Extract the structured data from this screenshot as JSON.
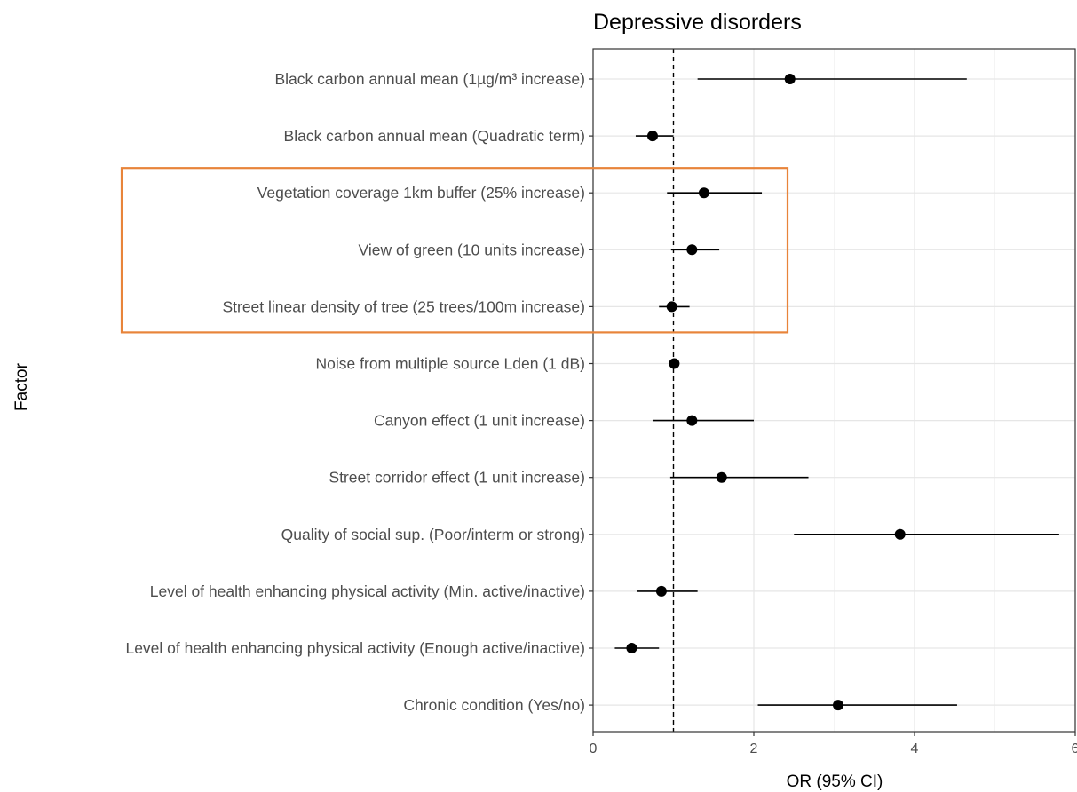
{
  "chart_data": {
    "type": "scatter",
    "title": "Depressive disorders",
    "xlabel": "OR (95% CI)",
    "ylabel": "Factor",
    "xlim": [
      0,
      6
    ],
    "x_ticks": [
      0,
      2,
      4,
      6
    ],
    "reference_line": 1,
    "grid": true,
    "highlight_box": {
      "color": "#e8843a",
      "factors": [
        "Vegetation coverage 1km buffer (25% increase)",
        "View of green (10 units increase)",
        "Street linear density of tree (25 trees/100m increase)"
      ]
    },
    "factors": [
      {
        "label": "Black carbon annual mean (1µg/m³ increase)",
        "or": 2.45,
        "lower": 1.3,
        "upper": 4.65
      },
      {
        "label": "Black carbon annual mean (Quadratic term)",
        "or": 0.74,
        "lower": 0.53,
        "upper": 1.0
      },
      {
        "label": "Vegetation coverage 1km buffer (25% increase)",
        "or": 1.38,
        "lower": 0.92,
        "upper": 2.1
      },
      {
        "label": "View of green (10 units increase)",
        "or": 1.23,
        "lower": 0.97,
        "upper": 1.57
      },
      {
        "label": "Street linear density of tree (25 trees/100m increase)",
        "or": 0.98,
        "lower": 0.82,
        "upper": 1.2
      },
      {
        "label": "Noise from multiple source Lden (1 dB)",
        "or": 1.01,
        "lower": 0.98,
        "upper": 1.04
      },
      {
        "label": "Canyon effect (1 unit increase)",
        "or": 1.23,
        "lower": 0.74,
        "upper": 2.0
      },
      {
        "label": "Street corridor effect (1 unit increase)",
        "or": 1.6,
        "lower": 0.96,
        "upper": 2.68
      },
      {
        "label": "Quality of social sup. (Poor/interm or strong)",
        "or": 3.82,
        "lower": 2.5,
        "upper": 5.8
      },
      {
        "label": "Level of health enhancing physical activity (Min. active/inactive)",
        "or": 0.85,
        "lower": 0.55,
        "upper": 1.3
      },
      {
        "label": "Level of health enhancing physical activity (Enough active/inactive)",
        "or": 0.48,
        "lower": 0.27,
        "upper": 0.82
      },
      {
        "label": "Chronic condition (Yes/no)",
        "or": 3.05,
        "lower": 2.05,
        "upper": 4.53
      }
    ]
  }
}
